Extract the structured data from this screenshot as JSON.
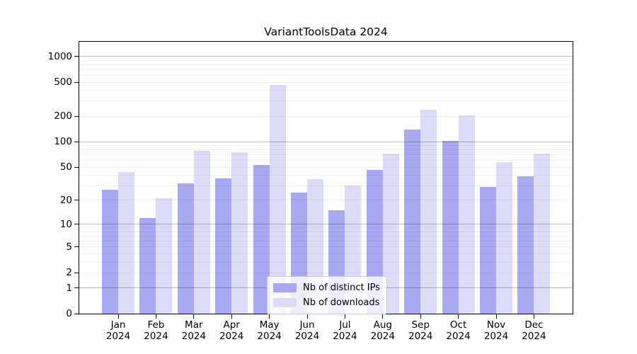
{
  "chart_data": {
    "type": "bar",
    "title": "VariantToolsData 2024",
    "xlabel": "",
    "ylabel": "",
    "year_label": "2024",
    "categories": [
      "Jan 2024",
      "Feb 2024",
      "Mar 2024",
      "Apr 2024",
      "May 2024",
      "Jun 2024",
      "Jul 2024",
      "Aug 2024",
      "Sep 2024",
      "Oct 2024",
      "Nov 2024",
      "Dec 2024"
    ],
    "month_labels": [
      "Jan",
      "Feb",
      "Mar",
      "Apr",
      "May",
      "Jun",
      "Jul",
      "Aug",
      "Sep",
      "Oct",
      "Nov",
      "Dec"
    ],
    "series": [
      {
        "name": "Nb of distinct IPs",
        "color": "#a9a9f1",
        "values": [
          27,
          12,
          32,
          37,
          53,
          25,
          15,
          46,
          140,
          102,
          29,
          39
        ]
      },
      {
        "name": "Nb of downloads",
        "color": "#dcdcf9",
        "values": [
          44,
          21,
          78,
          76,
          460,
          36,
          30,
          72,
          240,
          205,
          58,
          72
        ]
      }
    ],
    "y_scale": "log10(1+v)",
    "y_top_value": 1480,
    "y_ticks": [
      0,
      1,
      2,
      5,
      10,
      20,
      50,
      100,
      200,
      500,
      1000
    ],
    "grid": {
      "major_lines_at": [
        1,
        10,
        100,
        1000
      ],
      "minor_lines": "2-9 per decade",
      "drawn_over_bars": true
    },
    "legend": {
      "position": "bottom-center",
      "entries": [
        "Nb of distinct IPs",
        "Nb of downloads"
      ]
    },
    "colors": {
      "distinct_ips": "#a9a9f1",
      "downloads": "#dcdcf9",
      "major_grid": "#bdbdbd",
      "minor_grid": "#efefef"
    }
  }
}
